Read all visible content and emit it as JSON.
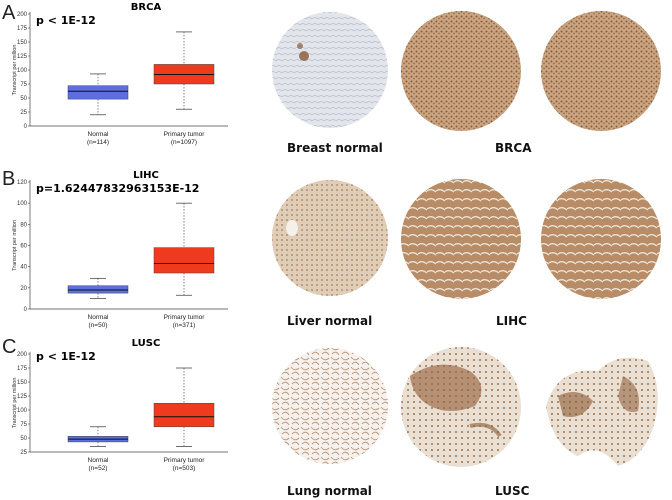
{
  "colors": {
    "normal_box": "#5b6fe0",
    "tumor_box": "#f03a1e",
    "stain_brown": "#8a5a34",
    "stain_bg": "#d8c7b4",
    "normal_tissue": "#cfd3de"
  },
  "panels": [
    {
      "letter": "A",
      "cancer": "BRCA",
      "pvalue": "p < 1E-12",
      "ylabel": "Transcript per million",
      "normal_caption": "Breast normal",
      "tumor_caption": "BRCA"
    },
    {
      "letter": "B",
      "cancer": "LIHC",
      "pvalue": "p=1.62447832963153E-12",
      "ylabel": "Transcript per million",
      "normal_caption": "Liver normal",
      "tumor_caption": "LIHC"
    },
    {
      "letter": "C",
      "cancer": "LUSC",
      "pvalue": "p < 1E-12",
      "ylabel": "Transcript per million",
      "normal_caption": "Lung normal",
      "tumor_caption": "LUSC"
    }
  ],
  "chart_data": [
    {
      "type": "boxplot",
      "title": "BRCA",
      "ylabel": "Transcript per million",
      "yticks": [
        0,
        25,
        50,
        75,
        100,
        125,
        150,
        175,
        200
      ],
      "ylim": [
        0,
        200
      ],
      "categories": [
        "Normal",
        "Primary tumor"
      ],
      "category_labels": [
        [
          "Normal",
          "(n=114)"
        ],
        [
          "Primary tumor",
          "(n=1097)"
        ]
      ],
      "boxes": [
        {
          "name": "Normal",
          "min": 20,
          "q1": 48,
          "median": 62,
          "q3": 72,
          "max": 93
        },
        {
          "name": "Primary tumor",
          "min": 30,
          "q1": 75,
          "median": 92,
          "q3": 110,
          "max": 168
        }
      ]
    },
    {
      "type": "boxplot",
      "title": "LIHC",
      "ylabel": "Transcript per million",
      "yticks": [
        0,
        20,
        40,
        60,
        80,
        100,
        120
      ],
      "ylim": [
        0,
        120
      ],
      "categories": [
        "Normal",
        "Primary tumor"
      ],
      "category_labels": [
        [
          "Normal",
          "(n=50)"
        ],
        [
          "Primary tumor",
          "(n=371)"
        ]
      ],
      "boxes": [
        {
          "name": "Normal",
          "min": 10,
          "q1": 15,
          "median": 18,
          "q3": 22,
          "max": 29
        },
        {
          "name": "Primary tumor",
          "min": 13,
          "q1": 34,
          "median": 43,
          "q3": 58,
          "max": 100
        }
      ]
    },
    {
      "type": "boxplot",
      "title": "LUSC",
      "ylabel": "Transcript per million",
      "yticks": [
        25,
        50,
        75,
        100,
        125,
        150,
        175,
        200
      ],
      "ylim": [
        25,
        200
      ],
      "categories": [
        "Normal",
        "Primary tumor"
      ],
      "category_labels": [
        [
          "Normal",
          "(n=52)"
        ],
        [
          "Primary tumor",
          "(n=503)"
        ]
      ],
      "boxes": [
        {
          "name": "Normal",
          "min": 35,
          "q1": 43,
          "median": 48,
          "q3": 53,
          "max": 70
        },
        {
          "name": "Primary tumor",
          "min": 35,
          "q1": 70,
          "median": 88,
          "q3": 112,
          "max": 175
        }
      ]
    }
  ]
}
